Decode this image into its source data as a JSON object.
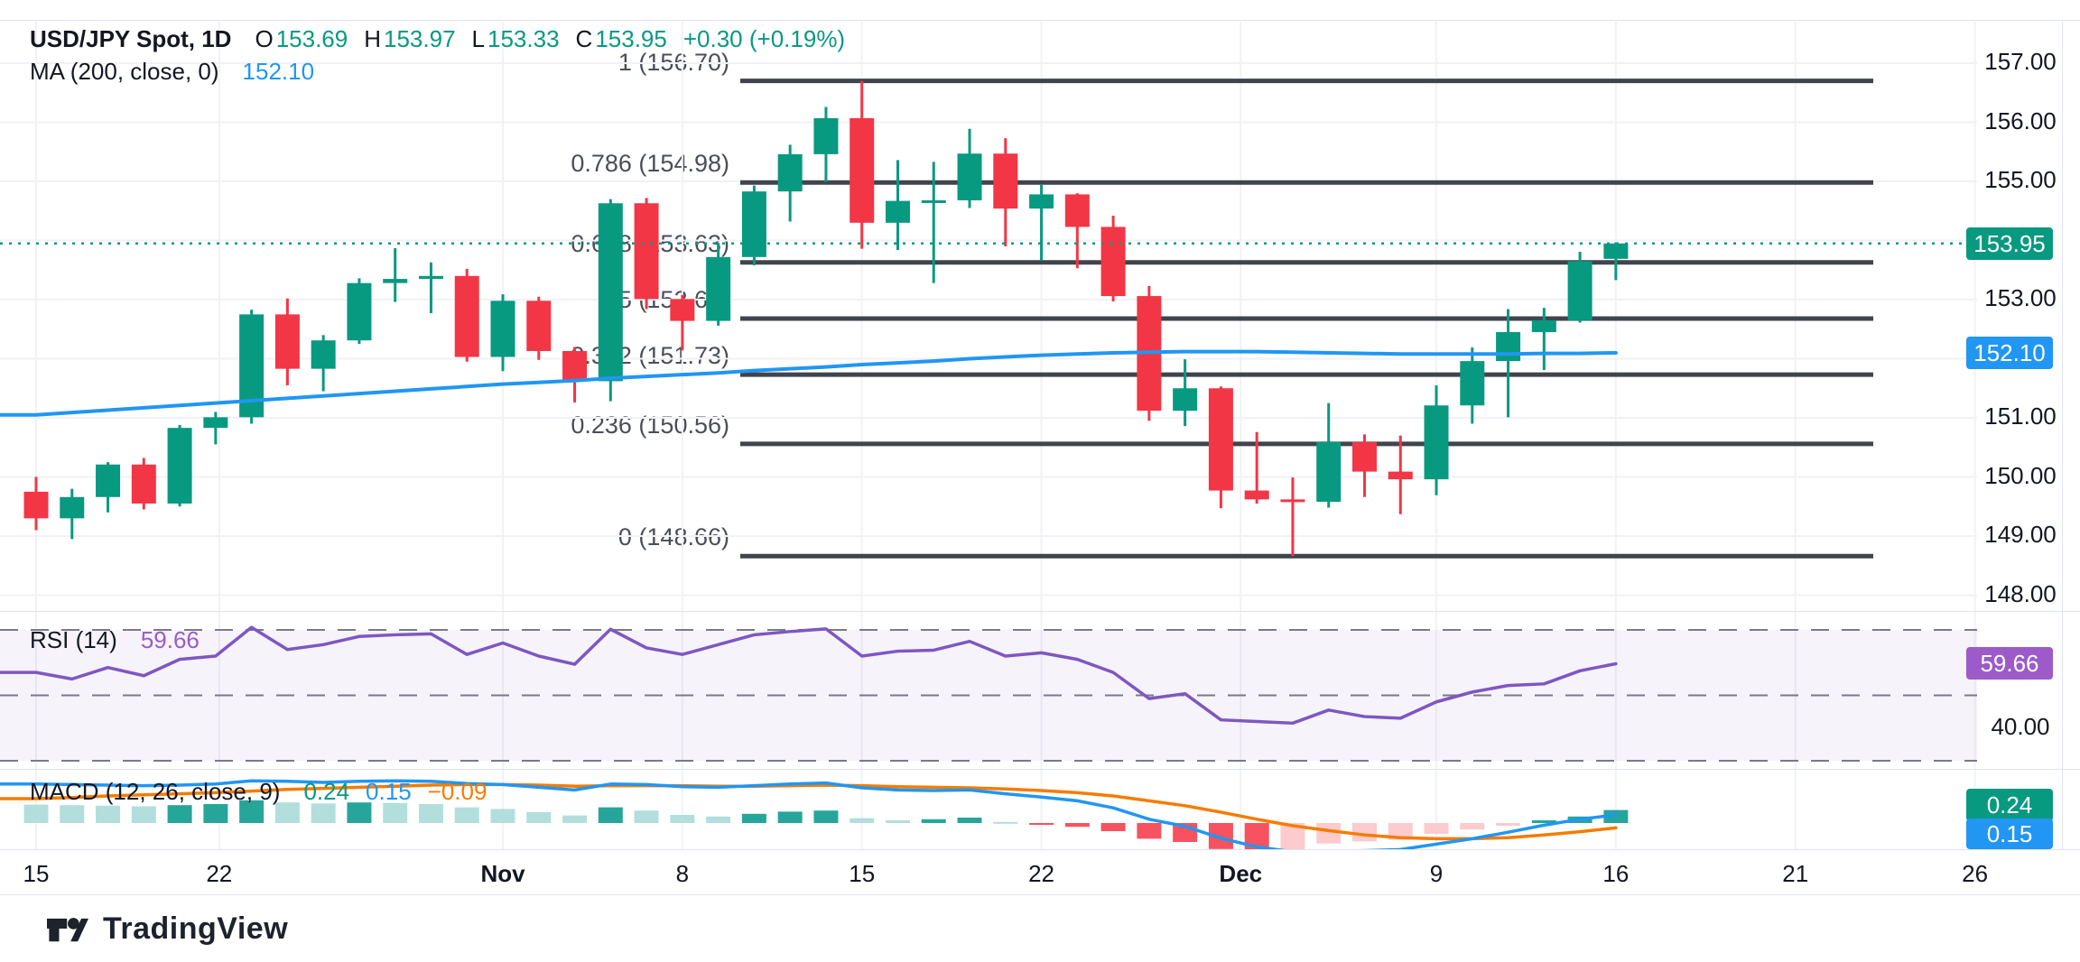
{
  "header": {
    "legend_line1": [
      {
        "text": "USD/JPY Spot, 1D",
        "color": "#131722",
        "bold": true,
        "gap": 26
      },
      {
        "text": "O",
        "color": "#131722",
        "gap": 3
      },
      {
        "text": "153.69",
        "color": "#089981",
        "gap": 18
      },
      {
        "text": "H",
        "color": "#131722",
        "gap": 3
      },
      {
        "text": "153.97",
        "color": "#089981",
        "gap": 18
      },
      {
        "text": "L",
        "color": "#131722",
        "gap": 3
      },
      {
        "text": "153.33",
        "color": "#089981",
        "gap": 18
      },
      {
        "text": "C",
        "color": "#131722",
        "gap": 3
      },
      {
        "text": "153.95",
        "color": "#089981",
        "gap": 18
      },
      {
        "text": "+0.30 (+0.19%)",
        "color": "#089981",
        "gap": 0
      }
    ],
    "legend_line2": [
      {
        "text": "MA (200, close, 0)",
        "color": "#131722",
        "gap": 26
      },
      {
        "text": "152.10",
        "color": "#2196F3",
        "gap": 0
      }
    ]
  },
  "rsi_legend": [
    {
      "text": "RSI (14)",
      "color": "#131722",
      "gap": 26
    },
    {
      "text": "59.66",
      "color": "#9C5BC8",
      "gap": 0
    }
  ],
  "macd_legend": [
    {
      "text": "MACD (12, 26, close, 9)",
      "color": "#131722",
      "gap": 26
    },
    {
      "text": "0.24",
      "color": "#089981",
      "gap": 18
    },
    {
      "text": "0.15",
      "color": "#2196F3",
      "gap": 18
    },
    {
      "text": "−0.09",
      "color": "#F57C00",
      "gap": 0
    }
  ],
  "badges": {
    "price": "153.95",
    "ma": "152.10",
    "rsi": "59.66",
    "macd_hist": "0.24",
    "macd_line": "0.15"
  },
  "watermark": "TradingView",
  "colors": {
    "up": "#089981",
    "down": "#F23645",
    "ma_line": "#2196F3",
    "rsi_line": "#7E57C2",
    "rsi_badge": "#9C5BC8",
    "rsi_band": "rgba(126,87,194,0.07)",
    "dashed": "#787B86",
    "fib_line": "#40444D",
    "fib_text": "#4A4E58",
    "grid": "#F1F2F6",
    "macd_line_blue": "#2196F3",
    "signal_orange": "#F57C00",
    "hist_pos_dark": "#26A69A",
    "hist_pos_light": "#B2DFDB",
    "hist_neg_dark": "#F7525F",
    "hist_neg_light": "#FCCBCD",
    "price_line": "#089981",
    "badge_price_bg": "#089981",
    "badge_ma_bg": "#2196F3"
  },
  "chart_data": [
    {
      "type": "candlestick",
      "title": "USD/JPY Spot, 1D",
      "legend_ohlc": {
        "open": 153.69,
        "high": 153.97,
        "low": 153.33,
        "close": 153.95,
        "change": "+0.30 (+0.19%)"
      },
      "last_price": 153.95,
      "ma200_last": 152.1,
      "ylim": [
        148.0,
        157.7
      ],
      "grid_prices": [
        157,
        156,
        155,
        154,
        153,
        152,
        151,
        150,
        149,
        148
      ],
      "y_axis_ticks": [
        {
          "label": "157.00",
          "value": 157
        },
        {
          "label": "156.00",
          "value": 156
        },
        {
          "label": "155.00",
          "value": 155
        },
        {
          "label": "153.00",
          "value": 153
        },
        {
          "label": "151.00",
          "value": 151
        },
        {
          "label": "150.00",
          "value": 150
        },
        {
          "label": "149.00",
          "value": 149
        },
        {
          "label": "148.00",
          "value": 148
        }
      ],
      "x_axis_ticks": [
        {
          "label": "15",
          "bar": 0,
          "bold": false
        },
        {
          "label": "22",
          "bar": 5.1,
          "bold": false
        },
        {
          "label": "Nov",
          "bar": 13,
          "bold": true
        },
        {
          "label": "8",
          "bar": 18,
          "bold": false
        },
        {
          "label": "15",
          "bar": 23,
          "bold": false
        },
        {
          "label": "22",
          "bar": 28,
          "bold": false
        },
        {
          "label": "Dec",
          "bar": 33.55,
          "bold": true
        },
        {
          "label": "9",
          "bar": 39,
          "bold": false
        },
        {
          "label": "16",
          "bar": 44,
          "bold": false
        },
        {
          "label": "21",
          "bar": 49,
          "bold": false
        },
        {
          "label": "26",
          "bar": 54,
          "bold": false
        }
      ],
      "fib_levels": [
        {
          "level": "1",
          "price": 156.7,
          "text": "1 (156.70)"
        },
        {
          "level": "0.786",
          "price": 154.98,
          "text": "0.786 (154.98)"
        },
        {
          "level": "0.618",
          "price": 153.63,
          "text": "0.618 (153.63)"
        },
        {
          "level": "0.5",
          "price": 152.68,
          "text": "0.5 (152.68)"
        },
        {
          "level": "0.382",
          "price": 151.73,
          "text": "0.382 (151.73)"
        },
        {
          "level": "0.236",
          "price": 150.56,
          "text": "0.236 (150.56)"
        },
        {
          "level": "0",
          "price": 148.66,
          "text": "0 (148.66)"
        }
      ],
      "candles": [
        [
          149.75,
          150.0,
          149.1,
          149.3
        ],
        [
          149.3,
          149.8,
          148.95,
          149.66
        ],
        [
          149.66,
          150.25,
          149.4,
          150.21
        ],
        [
          150.21,
          150.32,
          149.45,
          149.55
        ],
        [
          149.55,
          150.88,
          149.5,
          150.83
        ],
        [
          150.83,
          151.1,
          150.55,
          151.01
        ],
        [
          151.01,
          152.83,
          150.9,
          152.75
        ],
        [
          152.75,
          153.02,
          151.55,
          151.83
        ],
        [
          151.83,
          152.4,
          151.45,
          152.31
        ],
        [
          152.31,
          153.36,
          152.25,
          153.28
        ],
        [
          153.28,
          153.87,
          152.96,
          153.35
        ],
        [
          153.35,
          153.63,
          152.77,
          153.4
        ],
        [
          153.4,
          153.52,
          151.95,
          152.03
        ],
        [
          152.03,
          153.09,
          151.79,
          152.98
        ],
        [
          152.98,
          153.05,
          151.98,
          152.13
        ],
        [
          152.13,
          152.2,
          151.26,
          151.62
        ],
        [
          151.62,
          154.7,
          151.28,
          154.63
        ],
        [
          154.63,
          154.72,
          152.84,
          153.01
        ],
        [
          153.01,
          153.08,
          152.14,
          152.64
        ],
        [
          152.64,
          153.96,
          152.56,
          153.72
        ],
        [
          153.72,
          154.93,
          153.58,
          154.83
        ],
        [
          154.83,
          155.62,
          154.32,
          155.46
        ],
        [
          155.46,
          156.26,
          154.99,
          156.07
        ],
        [
          156.07,
          156.7,
          153.86,
          154.3
        ],
        [
          154.3,
          155.36,
          153.84,
          154.67
        ],
        [
          154.67,
          155.33,
          153.28,
          154.68
        ],
        [
          154.68,
          155.89,
          154.55,
          155.47
        ],
        [
          155.47,
          155.73,
          153.9,
          154.54
        ],
        [
          154.54,
          154.94,
          153.66,
          154.78
        ],
        [
          154.78,
          154.8,
          153.53,
          154.23
        ],
        [
          154.23,
          154.42,
          152.97,
          153.06
        ],
        [
          153.06,
          153.23,
          150.95,
          151.12
        ],
        [
          151.12,
          151.99,
          150.86,
          151.5
        ],
        [
          151.5,
          151.53,
          149.47,
          149.77
        ],
        [
          149.77,
          150.76,
          149.55,
          149.62
        ],
        [
          149.62,
          149.99,
          148.66,
          149.58
        ],
        [
          149.58,
          151.25,
          149.48,
          150.59
        ],
        [
          150.59,
          150.72,
          149.66,
          150.09
        ],
        [
          150.09,
          150.7,
          149.37,
          149.96
        ],
        [
          149.96,
          151.55,
          149.69,
          151.21
        ],
        [
          151.21,
          152.19,
          150.9,
          151.96
        ],
        [
          151.96,
          152.84,
          151.01,
          152.45
        ],
        [
          152.45,
          152.86,
          151.81,
          152.65
        ],
        [
          152.65,
          153.81,
          152.61,
          153.65
        ],
        [
          153.69,
          153.97,
          153.33,
          153.95
        ]
      ],
      "ma200": [
        151.05,
        151.09,
        151.13,
        151.17,
        151.21,
        151.25,
        151.29,
        151.33,
        151.37,
        151.41,
        151.45,
        151.49,
        151.53,
        151.57,
        151.6,
        151.63,
        151.67,
        151.7,
        151.73,
        151.76,
        151.8,
        151.83,
        151.86,
        151.9,
        151.93,
        151.96,
        152.0,
        152.03,
        152.06,
        152.08,
        152.1,
        152.11,
        152.12,
        152.12,
        152.12,
        152.11,
        152.1,
        152.09,
        152.08,
        152.08,
        152.08,
        152.08,
        152.09,
        152.09,
        152.1
      ]
    },
    {
      "type": "line",
      "name": "RSI (14)",
      "last": 59.66,
      "bands": [
        70,
        50,
        30
      ],
      "axis_ticks": [
        {
          "label": "40.00",
          "value": 40
        }
      ],
      "values": [
        57.0,
        55.0,
        58.5,
        56.0,
        61.0,
        62.0,
        70.8,
        64.0,
        65.5,
        68.0,
        68.5,
        68.8,
        62.5,
        66.0,
        62.0,
        59.5,
        70.2,
        64.5,
        62.5,
        65.5,
        68.5,
        69.5,
        70.3,
        62.0,
        63.5,
        63.8,
        66.5,
        62.0,
        63.0,
        61.0,
        57.0,
        49.0,
        50.5,
        42.5,
        42.0,
        41.5,
        45.5,
        43.5,
        43.0,
        48.0,
        51.0,
        53.0,
        53.5,
        57.5,
        59.66
      ]
    },
    {
      "type": "macd",
      "name": "MACD (12, 26, close, 9)",
      "last": {
        "hist": 0.24,
        "macd": 0.15,
        "signal": -0.09
      },
      "hist": [
        0.34,
        0.33,
        0.32,
        0.31,
        0.33,
        0.35,
        0.42,
        0.38,
        0.36,
        0.38,
        0.37,
        0.35,
        0.29,
        0.26,
        0.2,
        0.14,
        0.29,
        0.23,
        0.15,
        0.12,
        0.17,
        0.21,
        0.23,
        0.09,
        0.05,
        0.07,
        0.1,
        0.02,
        -0.02,
        -0.07,
        -0.15,
        -0.29,
        -0.35,
        -0.48,
        -0.52,
        -0.5,
        -0.38,
        -0.34,
        -0.31,
        -0.2,
        -0.12,
        -0.05,
        0.05,
        0.12,
        0.24
      ],
      "macd": [
        0.72,
        0.71,
        0.7,
        0.69,
        0.7,
        0.72,
        0.78,
        0.77,
        0.75,
        0.77,
        0.78,
        0.77,
        0.73,
        0.71,
        0.66,
        0.61,
        0.72,
        0.71,
        0.67,
        0.66,
        0.69,
        0.72,
        0.74,
        0.65,
        0.61,
        0.6,
        0.61,
        0.54,
        0.48,
        0.41,
        0.28,
        0.07,
        -0.06,
        -0.28,
        -0.44,
        -0.53,
        -0.52,
        -0.51,
        -0.49,
        -0.39,
        -0.29,
        -0.17,
        -0.04,
        0.07,
        0.15
      ],
      "signal": [
        0.45,
        0.47,
        0.5,
        0.52,
        0.54,
        0.56,
        0.59,
        0.62,
        0.64,
        0.66,
        0.68,
        0.7,
        0.71,
        0.71,
        0.7,
        0.68,
        0.69,
        0.69,
        0.69,
        0.68,
        0.68,
        0.69,
        0.7,
        0.69,
        0.67,
        0.66,
        0.65,
        0.63,
        0.6,
        0.56,
        0.5,
        0.41,
        0.32,
        0.2,
        0.07,
        -0.05,
        -0.14,
        -0.22,
        -0.27,
        -0.29,
        -0.29,
        -0.27,
        -0.22,
        -0.16,
        -0.09
      ]
    }
  ]
}
